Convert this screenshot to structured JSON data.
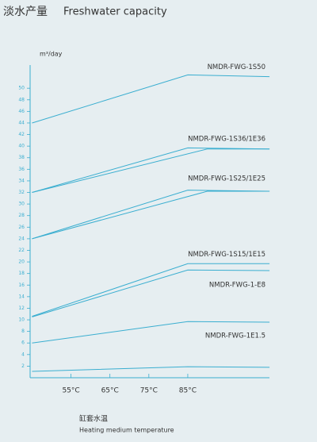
{
  "chart_data": {
    "type": "line",
    "title": "淡水产量",
    "subtitle": "Freshwater capacity",
    "y_label": "m³/day",
    "x_label": "缸套水温",
    "x_label_en": "Heating medium temperature",
    "color": "#3aaed0",
    "xlim": [
      44.5,
      107
    ],
    "ylim": [
      0,
      54
    ],
    "xticks": [
      {
        "value": 55,
        "label": "55°C"
      },
      {
        "value": 65,
        "label": "65°C"
      },
      {
        "value": 75,
        "label": "75°C"
      },
      {
        "value": 85,
        "label": "85°C"
      }
    ],
    "yticks": [
      2,
      4,
      6,
      8,
      10,
      12,
      14,
      16,
      18,
      20,
      22,
      24,
      26,
      28,
      30,
      32,
      34,
      36,
      38,
      40,
      42,
      44,
      46,
      48,
      50
    ],
    "series": [
      {
        "name": "NMDR-FWG-1S50",
        "x": [
          45,
          85,
          106
        ],
        "values": [
          44,
          52.3,
          52
        ]
      },
      {
        "name": "NMDR-FWG-1S36/1E36",
        "x": [
          45,
          85,
          106
        ],
        "values": [
          32,
          39.7,
          39.5
        ]
      },
      {
        "x": [
          45,
          90,
          106
        ],
        "values": [
          32,
          39.5,
          39.5
        ]
      },
      {
        "name": "NMDR-FWG-1S25/1E25",
        "x": [
          45,
          85,
          106
        ],
        "values": [
          24,
          32.4,
          32.2
        ]
      },
      {
        "x": [
          45,
          90,
          106
        ],
        "values": [
          24,
          32.2,
          32.2
        ]
      },
      {
        "name": "NMDR-FWG-1S15/1E15",
        "x": [
          45,
          85,
          106
        ],
        "values": [
          10.6,
          19.7,
          19.7
        ]
      },
      {
        "name": "NMDR-FWG-1-E8",
        "x": [
          45,
          85,
          106
        ],
        "values": [
          10.5,
          18.6,
          18.5
        ]
      },
      {
        "name": "NMDR-FWG-1E1.5",
        "x": [
          45,
          85,
          106
        ],
        "values": [
          6,
          9.7,
          9.6
        ]
      },
      {
        "x": [
          45,
          85,
          106
        ],
        "values": [
          1.1,
          1.9,
          1.8
        ]
      }
    ]
  }
}
